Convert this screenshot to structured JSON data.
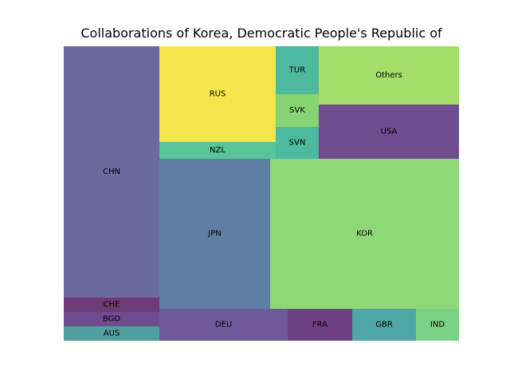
{
  "chart_data": {
    "type": "treemap",
    "title": "Collaborations of Korea, Democratic People's Republic of",
    "cells": [
      {
        "label": "CHN",
        "value": 313,
        "color": "#6a6a9e"
      },
      {
        "label": "CHE",
        "value": 18,
        "color": "#6e3a75"
      },
      {
        "label": "BGD",
        "value": 18,
        "color": "#704b8f"
      },
      {
        "label": "AUS",
        "value": 18,
        "color": "#4f9fa0"
      },
      {
        "label": "RUS",
        "value": 120,
        "color": "#f4e64a"
      },
      {
        "label": "NZL",
        "value": 20,
        "color": "#58c497"
      },
      {
        "label": "JPN",
        "value": 175,
        "color": "#5f80a4"
      },
      {
        "label": "TUR",
        "value": 27,
        "color": "#4db99e"
      },
      {
        "label": "SVK",
        "value": 17,
        "color": "#86d474"
      },
      {
        "label": "SVN",
        "value": 23,
        "color": "#4db99e"
      },
      {
        "label": "Others",
        "value": 55,
        "color": "#a3de6a"
      },
      {
        "label": "USA",
        "value": 56,
        "color": "#6e4c8d"
      },
      {
        "label": "KOR",
        "value": 297,
        "color": "#8fd877"
      },
      {
        "label": "DEU",
        "value": 53,
        "color": "#6f5a9c"
      },
      {
        "label": "FRA",
        "value": 27,
        "color": "#6e4185"
      },
      {
        "label": "GBR",
        "value": 26,
        "color": "#4ea7a6"
      },
      {
        "label": "IND",
        "value": 18,
        "color": "#79d184"
      }
    ]
  }
}
